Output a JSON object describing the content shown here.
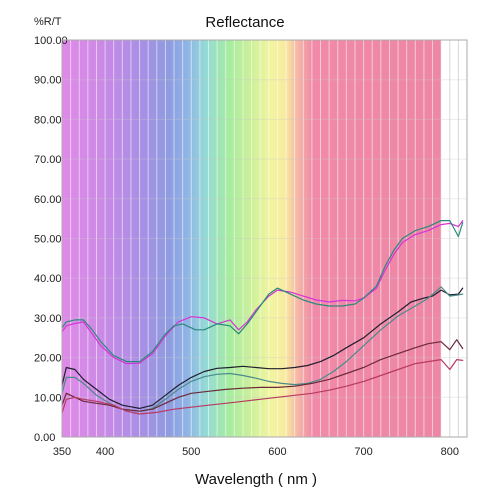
{
  "chart_data": {
    "type": "line",
    "title": "Reflectance",
    "ylabel": "%R/T",
    "xlabel": "Wavelength ( nm )",
    "xlim": [
      350,
      820
    ],
    "ylim": [
      0,
      100
    ],
    "x_ticks": [
      350,
      400,
      500,
      600,
      700,
      800
    ],
    "y_ticks": [
      0,
      10,
      20,
      30,
      40,
      50,
      60,
      70,
      80,
      90,
      100
    ],
    "y_tick_labels": [
      "0.00",
      "10.00",
      "20.00",
      "30.00",
      "40.00",
      "50.00",
      "60.00",
      "70.00",
      "80.00",
      "90.00",
      "100.00"
    ],
    "grid": true,
    "legend": "none",
    "background": "visible spectrum gradient (violet to red, 350-790 nm)",
    "series": [
      {
        "color": "#d633d6",
        "points": [
          [
            350,
            26.5
          ],
          [
            355,
            28
          ],
          [
            365,
            28.6
          ],
          [
            375,
            29
          ],
          [
            385,
            26
          ],
          [
            395,
            23
          ],
          [
            410,
            20
          ],
          [
            425,
            18.5
          ],
          [
            440,
            18.6
          ],
          [
            455,
            21
          ],
          [
            470,
            25.5
          ],
          [
            485,
            29
          ],
          [
            500,
            30.3
          ],
          [
            515,
            30
          ],
          [
            530,
            28.5
          ],
          [
            545,
            29.5
          ],
          [
            555,
            27
          ],
          [
            565,
            29
          ],
          [
            575,
            32
          ],
          [
            590,
            35.5
          ],
          [
            600,
            37
          ],
          [
            615,
            36.5
          ],
          [
            630,
            35.5
          ],
          [
            645,
            34.5
          ],
          [
            660,
            34
          ],
          [
            675,
            34.4
          ],
          [
            690,
            34.3
          ],
          [
            700,
            35
          ],
          [
            715,
            37.5
          ],
          [
            725,
            42
          ],
          [
            735,
            46
          ],
          [
            745,
            49
          ],
          [
            760,
            51
          ],
          [
            775,
            52
          ],
          [
            790,
            53.5
          ],
          [
            800,
            53.8
          ],
          [
            810,
            53
          ],
          [
            815,
            54.5
          ]
        ]
      },
      {
        "color": "#2a8a7a",
        "points": [
          [
            350,
            27.5
          ],
          [
            355,
            29
          ],
          [
            365,
            29.5
          ],
          [
            375,
            29.5
          ],
          [
            385,
            27
          ],
          [
            395,
            24
          ],
          [
            410,
            20.5
          ],
          [
            425,
            19
          ],
          [
            440,
            19
          ],
          [
            455,
            21.5
          ],
          [
            470,
            26
          ],
          [
            480,
            28
          ],
          [
            490,
            28.5
          ],
          [
            505,
            27
          ],
          [
            515,
            27
          ],
          [
            530,
            28.5
          ],
          [
            545,
            28
          ],
          [
            555,
            26
          ],
          [
            565,
            28.5
          ],
          [
            580,
            33
          ],
          [
            590,
            36
          ],
          [
            600,
            37.5
          ],
          [
            615,
            36
          ],
          [
            630,
            34.5
          ],
          [
            645,
            33.5
          ],
          [
            660,
            33
          ],
          [
            675,
            33
          ],
          [
            690,
            33.5
          ],
          [
            700,
            35
          ],
          [
            715,
            38
          ],
          [
            725,
            43
          ],
          [
            735,
            47
          ],
          [
            745,
            50
          ],
          [
            760,
            52
          ],
          [
            775,
            53
          ],
          [
            790,
            54.5
          ],
          [
            800,
            54.5
          ],
          [
            805,
            52.5
          ],
          [
            810,
            50.5
          ],
          [
            815,
            54
          ]
        ]
      },
      {
        "color": "#1f1f2e",
        "points": [
          [
            350,
            13
          ],
          [
            355,
            17.5
          ],
          [
            365,
            17
          ],
          [
            375,
            14.5
          ],
          [
            390,
            12
          ],
          [
            405,
            9.5
          ],
          [
            420,
            8
          ],
          [
            440,
            7.2
          ],
          [
            455,
            8
          ],
          [
            470,
            10.5
          ],
          [
            485,
            13
          ],
          [
            500,
            15
          ],
          [
            515,
            16.5
          ],
          [
            530,
            17.3
          ],
          [
            545,
            17.5
          ],
          [
            560,
            17.8
          ],
          [
            575,
            17.5
          ],
          [
            590,
            17.2
          ],
          [
            605,
            17.2
          ],
          [
            620,
            17.5
          ],
          [
            635,
            18
          ],
          [
            650,
            19
          ],
          [
            665,
            20.5
          ],
          [
            680,
            22.5
          ],
          [
            700,
            25
          ],
          [
            720,
            28.5
          ],
          [
            740,
            31.5
          ],
          [
            755,
            34
          ],
          [
            770,
            35
          ],
          [
            780,
            35.5
          ],
          [
            790,
            37
          ],
          [
            800,
            35.8
          ],
          [
            810,
            36
          ],
          [
            815,
            37.5
          ]
        ]
      },
      {
        "color": "#4a8a88",
        "points": [
          [
            350,
            11
          ],
          [
            355,
            15
          ],
          [
            365,
            15
          ],
          [
            375,
            13.5
          ],
          [
            390,
            10.5
          ],
          [
            405,
            8.5
          ],
          [
            420,
            7
          ],
          [
            440,
            6.5
          ],
          [
            455,
            7.2
          ],
          [
            470,
            9.5
          ],
          [
            485,
            12
          ],
          [
            500,
            14
          ],
          [
            515,
            15.2
          ],
          [
            530,
            15.8
          ],
          [
            545,
            16
          ],
          [
            560,
            15.5
          ],
          [
            575,
            14.8
          ],
          [
            590,
            14
          ],
          [
            605,
            13.5
          ],
          [
            620,
            13.2
          ],
          [
            635,
            13.5
          ],
          [
            650,
            14.5
          ],
          [
            665,
            16.5
          ],
          [
            680,
            19
          ],
          [
            700,
            23
          ],
          [
            720,
            27
          ],
          [
            740,
            30.5
          ],
          [
            760,
            33
          ],
          [
            775,
            35
          ],
          [
            790,
            37.8
          ],
          [
            800,
            35.5
          ],
          [
            810,
            35.8
          ],
          [
            815,
            36
          ]
        ]
      },
      {
        "color": "#6b2a3a",
        "points": [
          [
            350,
            8
          ],
          [
            355,
            11
          ],
          [
            365,
            10
          ],
          [
            375,
            9
          ],
          [
            390,
            8.5
          ],
          [
            405,
            8
          ],
          [
            420,
            7
          ],
          [
            440,
            6.5
          ],
          [
            455,
            7
          ],
          [
            470,
            8.5
          ],
          [
            485,
            10
          ],
          [
            500,
            11
          ],
          [
            520,
            11.5
          ],
          [
            540,
            12
          ],
          [
            560,
            12.3
          ],
          [
            580,
            12.5
          ],
          [
            600,
            12.5
          ],
          [
            620,
            12.8
          ],
          [
            640,
            13.5
          ],
          [
            660,
            14.5
          ],
          [
            680,
            16
          ],
          [
            700,
            17.5
          ],
          [
            720,
            19.5
          ],
          [
            740,
            21
          ],
          [
            760,
            22.5
          ],
          [
            775,
            23.5
          ],
          [
            790,
            24
          ],
          [
            800,
            22
          ],
          [
            808,
            24.5
          ],
          [
            815,
            22.3
          ]
        ]
      },
      {
        "color": "#b83a62",
        "points": [
          [
            350,
            6
          ],
          [
            355,
            9.5
          ],
          [
            365,
            10
          ],
          [
            375,
            9.5
          ],
          [
            390,
            9
          ],
          [
            410,
            8
          ],
          [
            425,
            6.5
          ],
          [
            440,
            5.8
          ],
          [
            460,
            6.2
          ],
          [
            480,
            7
          ],
          [
            500,
            7.5
          ],
          [
            520,
            8
          ],
          [
            540,
            8.5
          ],
          [
            560,
            9
          ],
          [
            580,
            9.5
          ],
          [
            600,
            10
          ],
          [
            620,
            10.5
          ],
          [
            640,
            11
          ],
          [
            660,
            11.8
          ],
          [
            680,
            12.8
          ],
          [
            700,
            14
          ],
          [
            720,
            15.5
          ],
          [
            740,
            17
          ],
          [
            760,
            18.5
          ],
          [
            775,
            19
          ],
          [
            790,
            19.5
          ],
          [
            800,
            17
          ],
          [
            808,
            19.5
          ],
          [
            815,
            19.3
          ]
        ]
      }
    ]
  }
}
